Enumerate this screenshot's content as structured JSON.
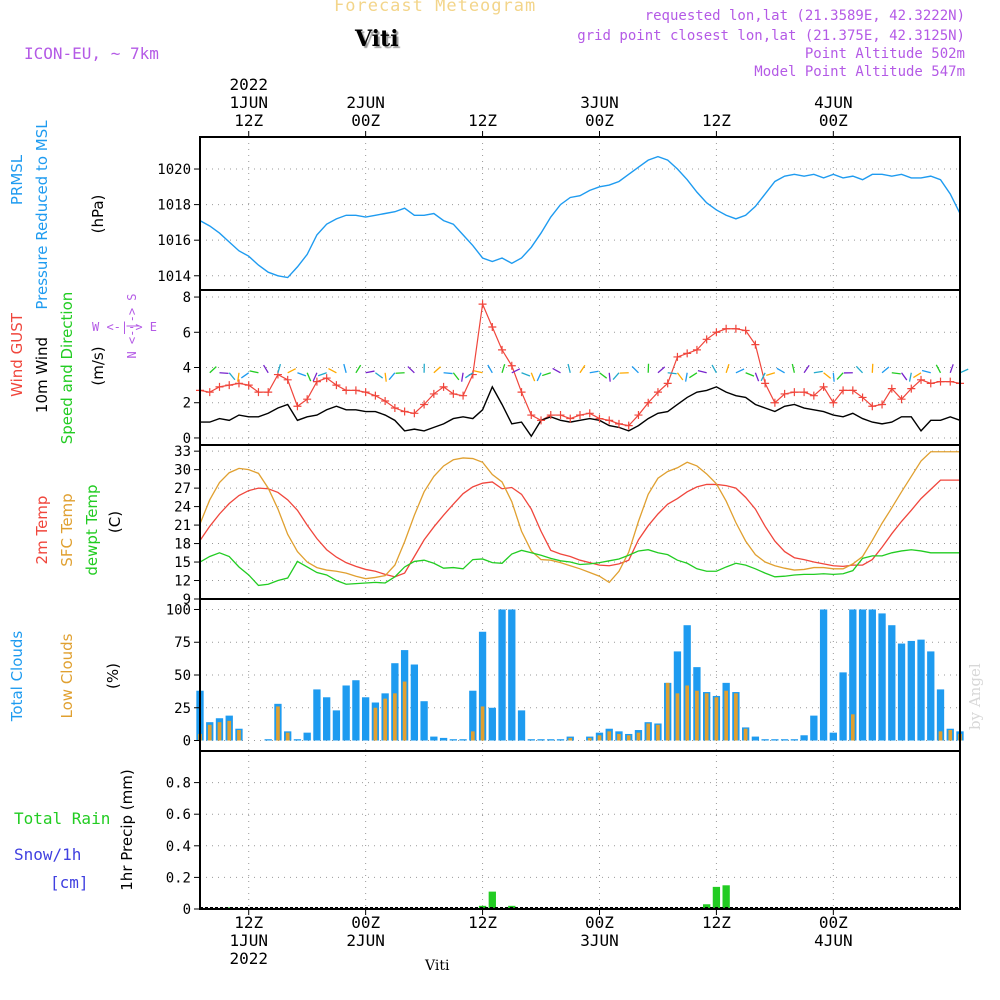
{
  "header": {
    "title_faint": "Forecast Meteogram",
    "station": "Viti",
    "model": "ICON-EU, ~ 7km",
    "requested": "requested lon,lat (21.3589E, 42.3222N)",
    "grid_point": "grid point closest lon,lat (21.375E, 42.3125N)",
    "point_altitude": "Point Altitude 502m",
    "model_altitude": "Model Point Altitude 547m",
    "watermark": "by Angel",
    "footer_station": "Viti"
  },
  "colors": {
    "blue": "#1e9bf0",
    "red": "#f0463c",
    "orange": "#e0a030",
    "green": "#22cc22",
    "purple": "#b45ae6",
    "black": "#000000",
    "light_orange": "#f3d58a",
    "grid": "#999999"
  },
  "chart_data": [
    {
      "type": "line",
      "panel": "pressure",
      "labels": [
        "PRMSL",
        "Pressure Reduced to MSL",
        "(hPa)"
      ],
      "x_top_labels": [
        [
          "2022",
          "1JUN",
          "12Z"
        ],
        [
          "2JUN",
          "00Z"
        ],
        [
          "12Z"
        ],
        [
          "3JUN",
          "00Z"
        ],
        [
          "12Z"
        ],
        [
          "4JUN",
          "00Z"
        ]
      ],
      "x_bottom_labels": [
        [
          "12Z",
          "1JUN",
          "2022"
        ],
        [
          "00Z",
          "2JUN"
        ],
        [
          "12Z"
        ],
        [
          "00Z",
          "3JUN"
        ],
        [
          "12Z"
        ],
        [
          "00Z",
          "4JUN"
        ]
      ],
      "x_ticks_hours": [
        12,
        24,
        36,
        48,
        60,
        72
      ],
      "x_range_hours": [
        7,
        85
      ],
      "ylim": [
        1013.2,
        1021.8
      ],
      "yticks": [
        1014,
        1016,
        1018,
        1020
      ],
      "series": [
        {
          "color": "#1e9bf0",
          "x": [
            7,
            8,
            9,
            10,
            11,
            12,
            13,
            14,
            15,
            16,
            17,
            18,
            19,
            20,
            21,
            22,
            23,
            24,
            25,
            26,
            27,
            28,
            29,
            30,
            31,
            32,
            33,
            34,
            35,
            36,
            37,
            38,
            39,
            40,
            41,
            42,
            43,
            44,
            45,
            46,
            47,
            48,
            49,
            50,
            51,
            52,
            53,
            54,
            55,
            56,
            57,
            58,
            59,
            60,
            61,
            62,
            63,
            64,
            65,
            66,
            67,
            68,
            69,
            70,
            71,
            72,
            73,
            74,
            75,
            76,
            77,
            78,
            79,
            80,
            81,
            82,
            83,
            84,
            85
          ],
          "values": [
            1017.1,
            1016.8,
            1016.4,
            1015.9,
            1015.4,
            1015.1,
            1014.6,
            1014.2,
            1014.0,
            1013.9,
            1014.5,
            1015.2,
            1016.3,
            1016.9,
            1017.2,
            1017.4,
            1017.4,
            1017.3,
            1017.4,
            1017.5,
            1017.6,
            1017.8,
            1017.4,
            1017.4,
            1017.5,
            1017.1,
            1016.9,
            1016.3,
            1015.7,
            1015.0,
            1014.8,
            1015.0,
            1014.7,
            1015.0,
            1015.6,
            1016.4,
            1017.3,
            1018.0,
            1018.4,
            1018.5,
            1018.8,
            1019.0,
            1019.1,
            1019.3,
            1019.7,
            1020.1,
            1020.5,
            1020.7,
            1020.5,
            1020.0,
            1019.4,
            1018.7,
            1018.1,
            1017.7,
            1017.4,
            1017.2,
            1017.4,
            1017.9,
            1018.6,
            1019.3,
            1019.6,
            1019.7,
            1019.6,
            1019.7,
            1019.5,
            1019.7,
            1019.5,
            1019.6,
            1019.4,
            1019.7,
            1019.7,
            1019.6,
            1019.7,
            1019.5,
            1019.5,
            1019.6,
            1019.4,
            1018.6,
            1017.5
          ]
        }
      ]
    },
    {
      "type": "line",
      "panel": "wind",
      "labels": [
        "Wind GUST",
        "10m Wind",
        "Speed and Direction",
        "(m/s)"
      ],
      "direction_legend": [
        "N",
        "S",
        "W",
        "E"
      ],
      "ylim": [
        -0.4,
        8.4
      ],
      "yticks": [
        0,
        2,
        4,
        6,
        8
      ],
      "x": [
        7,
        8,
        9,
        10,
        11,
        12,
        13,
        14,
        15,
        16,
        17,
        18,
        19,
        20,
        21,
        22,
        23,
        24,
        25,
        26,
        27,
        28,
        29,
        30,
        31,
        32,
        33,
        34,
        35,
        36,
        37,
        38,
        39,
        40,
        41,
        42,
        43,
        44,
        45,
        46,
        47,
        48,
        49,
        50,
        51,
        52,
        53,
        54,
        55,
        56,
        57,
        58,
        59,
        60,
        61,
        62,
        63,
        64,
        65,
        66,
        67,
        68,
        69,
        70,
        71,
        72,
        73,
        74,
        75,
        76,
        77,
        78,
        79,
        80,
        81,
        82,
        83,
        84,
        85
      ],
      "series": [
        {
          "name": "Wind GUST",
          "color": "#f0463c",
          "markers": "plus",
          "values": [
            2.7,
            2.6,
            2.9,
            3.0,
            3.1,
            3.0,
            2.6,
            2.6,
            3.6,
            3.3,
            1.8,
            2.2,
            3.2,
            3.4,
            3.0,
            2.7,
            2.7,
            2.6,
            2.4,
            2.1,
            1.7,
            1.5,
            1.4,
            1.9,
            2.5,
            2.9,
            2.5,
            2.4,
            3.6,
            7.6,
            6.3,
            5.0,
            4.1,
            2.6,
            1.3,
            1.0,
            1.3,
            1.3,
            1.1,
            1.3,
            1.4,
            1.1,
            1.0,
            0.8,
            0.7,
            1.3,
            2.0,
            2.6,
            3.1,
            4.6,
            4.8,
            5.0,
            5.6,
            6.0,
            6.2,
            6.2,
            6.1,
            5.3,
            3.1,
            2.0,
            2.5,
            2.6,
            2.6,
            2.4,
            2.9,
            2.0,
            2.7,
            2.7,
            2.3,
            1.8,
            1.9,
            2.8,
            2.2,
            2.8,
            3.3,
            3.1,
            3.2,
            3.2,
            3.1
          ]
        },
        {
          "name": "10m Wind",
          "color": "#000000",
          "values": [
            0.9,
            0.9,
            1.1,
            1.0,
            1.3,
            1.2,
            1.2,
            1.4,
            1.7,
            1.9,
            1.0,
            1.2,
            1.3,
            1.6,
            1.8,
            1.6,
            1.6,
            1.5,
            1.5,
            1.3,
            1.0,
            0.4,
            0.5,
            0.4,
            0.6,
            0.8,
            1.1,
            1.2,
            1.1,
            1.6,
            2.9,
            1.9,
            0.8,
            0.9,
            0.1,
            1.0,
            1.2,
            1.0,
            0.9,
            1.0,
            1.1,
            1.0,
            0.7,
            0.6,
            0.4,
            0.7,
            1.1,
            1.4,
            1.5,
            1.9,
            2.3,
            2.6,
            2.7,
            2.9,
            2.6,
            2.4,
            2.3,
            1.9,
            1.7,
            1.5,
            1.8,
            1.9,
            1.7,
            1.6,
            1.5,
            1.3,
            1.2,
            1.4,
            1.1,
            0.9,
            0.8,
            0.9,
            1.2,
            1.2,
            0.4,
            1.0,
            1.0,
            1.2,
            1.0
          ]
        }
      ]
    },
    {
      "type": "line",
      "panel": "temperature",
      "labels": [
        "2m Temp",
        "SFC Temp",
        "dewpt Temp",
        "(C)"
      ],
      "ylim": [
        9,
        34
      ],
      "yticks": [
        9,
        12,
        15,
        18,
        21,
        24,
        27,
        30,
        33
      ],
      "x": [
        7,
        8,
        9,
        10,
        11,
        12,
        13,
        14,
        15,
        16,
        17,
        18,
        19,
        20,
        21,
        22,
        23,
        24,
        25,
        26,
        27,
        28,
        29,
        30,
        31,
        32,
        33,
        34,
        35,
        36,
        37,
        38,
        39,
        40,
        41,
        42,
        43,
        44,
        45,
        46,
        47,
        48,
        49,
        50,
        51,
        52,
        53,
        54,
        55,
        56,
        57,
        58,
        59,
        60,
        61,
        62,
        63,
        64,
        65,
        66,
        67,
        68,
        69,
        70,
        71,
        72,
        73,
        74,
        75,
        76,
        77,
        78,
        79,
        80,
        81,
        82,
        83,
        84,
        85
      ],
      "series": [
        {
          "name": "2m Temp",
          "color": "#f0463c",
          "values": [
            18.5,
            20.8,
            22.8,
            24.5,
            25.8,
            26.6,
            27.0,
            26.9,
            26.3,
            25.1,
            23.4,
            21.0,
            18.8,
            17.0,
            15.8,
            14.9,
            14.3,
            13.8,
            13.5,
            13.0,
            12.6,
            13.2,
            15.9,
            18.6,
            20.7,
            22.6,
            24.4,
            26.1,
            27.2,
            27.8,
            28.0,
            26.9,
            27.1,
            26.0,
            23.6,
            20.0,
            16.9,
            16.3,
            15.9,
            15.3,
            14.9,
            14.5,
            14.4,
            14.7,
            15.3,
            18.6,
            20.9,
            22.8,
            24.4,
            25.3,
            26.4,
            27.2,
            27.6,
            27.6,
            27.4,
            27.0,
            25.5,
            23.6,
            20.8,
            18.4,
            16.7,
            15.7,
            15.4,
            15.0,
            14.7,
            14.4,
            14.3,
            14.5,
            14.5,
            15.4,
            17.4,
            19.6,
            21.6,
            23.4,
            25.3,
            26.8,
            28.3,
            28.3,
            28.3
          ]
        },
        {
          "name": "SFC Temp",
          "color": "#e0a030",
          "values": [
            21.2,
            25.1,
            27.9,
            29.5,
            30.2,
            30.0,
            29.4,
            27.0,
            23.6,
            19.5,
            16.7,
            15.0,
            14.1,
            13.7,
            13.5,
            13.2,
            12.7,
            12.3,
            12.5,
            12.8,
            14.5,
            18.3,
            22.6,
            26.4,
            28.9,
            30.6,
            31.6,
            31.9,
            31.8,
            31.2,
            29.2,
            28.0,
            24.8,
            20.0,
            16.8,
            15.4,
            15.3,
            14.9,
            14.4,
            13.9,
            13.3,
            12.7,
            11.7,
            13.5,
            16.6,
            21.6,
            26.0,
            28.6,
            29.7,
            30.3,
            31.2,
            30.6,
            29.3,
            27.7,
            24.9,
            21.4,
            18.4,
            16.2,
            15.0,
            14.4,
            14.0,
            13.7,
            13.8,
            14.1,
            14.1,
            13.9,
            13.9,
            14.7,
            15.9,
            18.5,
            21.3,
            23.8,
            26.4,
            28.9,
            31.4,
            32.9,
            32.9,
            32.9,
            32.9
          ]
        },
        {
          "name": "dewpt Temp",
          "color": "#22cc22",
          "values": [
            15.0,
            15.9,
            16.5,
            15.9,
            14.2,
            12.9,
            11.2,
            11.4,
            12.0,
            12.4,
            15.1,
            14.2,
            13.3,
            12.9,
            12.0,
            11.4,
            11.5,
            11.6,
            11.7,
            11.6,
            12.6,
            14.2,
            15.1,
            15.3,
            14.8,
            14.0,
            14.1,
            13.9,
            15.4,
            15.5,
            14.9,
            14.8,
            16.3,
            16.9,
            16.5,
            16.1,
            15.6,
            15.2,
            15.0,
            14.6,
            14.7,
            14.9,
            15.2,
            15.5,
            16.1,
            16.8,
            17.0,
            16.5,
            16.2,
            15.3,
            14.8,
            13.9,
            13.5,
            13.5,
            14.2,
            14.8,
            14.5,
            13.9,
            13.2,
            12.6,
            12.7,
            12.9,
            13.0,
            13.0,
            13.1,
            13.0,
            13.1,
            13.6,
            15.6,
            16.0,
            16.0,
            16.5,
            16.8,
            17.0,
            16.8,
            16.5,
            16.5,
            16.5,
            16.5
          ]
        }
      ]
    },
    {
      "type": "bar",
      "panel": "clouds",
      "labels": [
        "Total Clouds",
        "Low Clouds",
        "(%)"
      ],
      "ylim": [
        -8,
        108
      ],
      "yticks": [
        0,
        25,
        50,
        75,
        100
      ],
      "x": [
        7,
        8,
        9,
        10,
        11,
        12,
        13,
        14,
        15,
        16,
        17,
        18,
        19,
        20,
        21,
        22,
        23,
        24,
        25,
        26,
        27,
        28,
        29,
        30,
        31,
        32,
        33,
        34,
        35,
        36,
        37,
        38,
        39,
        40,
        41,
        42,
        43,
        44,
        45,
        46,
        47,
        48,
        49,
        50,
        51,
        52,
        53,
        54,
        55,
        56,
        57,
        58,
        59,
        60,
        61,
        62,
        63,
        64,
        65,
        66,
        67,
        68,
        69,
        70,
        71,
        72,
        73,
        74,
        75,
        76,
        77,
        78,
        79,
        80,
        81,
        82,
        83,
        84,
        85
      ],
      "series": [
        {
          "name": "Total Clouds",
          "color": "#1e9bf0",
          "values": [
            38,
            14,
            17,
            19,
            9,
            0,
            0,
            1,
            28,
            7,
            1,
            6,
            39,
            33,
            23,
            42,
            46,
            33,
            29,
            36,
            59,
            69,
            58,
            30,
            3,
            2,
            1,
            1,
            38,
            83,
            25,
            100,
            100,
            23,
            1,
            1,
            1,
            1,
            3,
            0,
            3,
            6,
            9,
            7,
            5,
            8,
            14,
            13,
            44,
            68,
            88,
            56,
            37,
            34,
            44,
            37,
            10,
            3,
            1,
            1,
            1,
            1,
            4,
            19,
            100,
            6,
            52,
            100,
            100,
            100,
            97,
            88,
            74,
            76,
            77,
            68,
            39,
            9,
            7
          ]
        },
        {
          "name": "Low Clouds",
          "color": "#e0a030",
          "values": [
            5,
            12,
            14,
            15,
            8,
            0,
            0,
            0,
            26,
            6,
            0,
            0,
            0,
            0,
            0,
            0,
            0,
            0,
            25,
            32,
            36,
            45,
            0,
            0,
            0,
            0,
            0,
            0,
            7,
            26,
            0,
            0,
            0,
            0,
            0,
            0,
            0,
            0,
            2,
            0,
            2,
            4,
            7,
            5,
            4,
            6,
            13,
            12,
            44,
            36,
            42,
            38,
            36,
            33,
            38,
            36,
            9,
            0,
            0,
            0,
            0,
            0,
            0,
            0,
            0,
            0,
            0,
            20,
            0,
            0,
            0,
            0,
            0,
            0,
            0,
            0,
            7,
            8,
            5
          ]
        }
      ]
    },
    {
      "type": "bar",
      "panel": "precip",
      "labels": [
        "Total Rain",
        "Snow/1h",
        "[cm]",
        "1hr Precip (mm)"
      ],
      "ylim": [
        0,
        1.0
      ],
      "yticks": [
        0,
        0.2,
        0.4,
        0.6,
        0.8
      ],
      "x": [
        10,
        36,
        37,
        39,
        59,
        60,
        61
      ],
      "series": [
        {
          "name": "Total Rain",
          "color": "#22cc22",
          "values": [
            0.01,
            0.02,
            0.11,
            0.02,
            0.03,
            0.14,
            0.15
          ]
        }
      ]
    }
  ]
}
